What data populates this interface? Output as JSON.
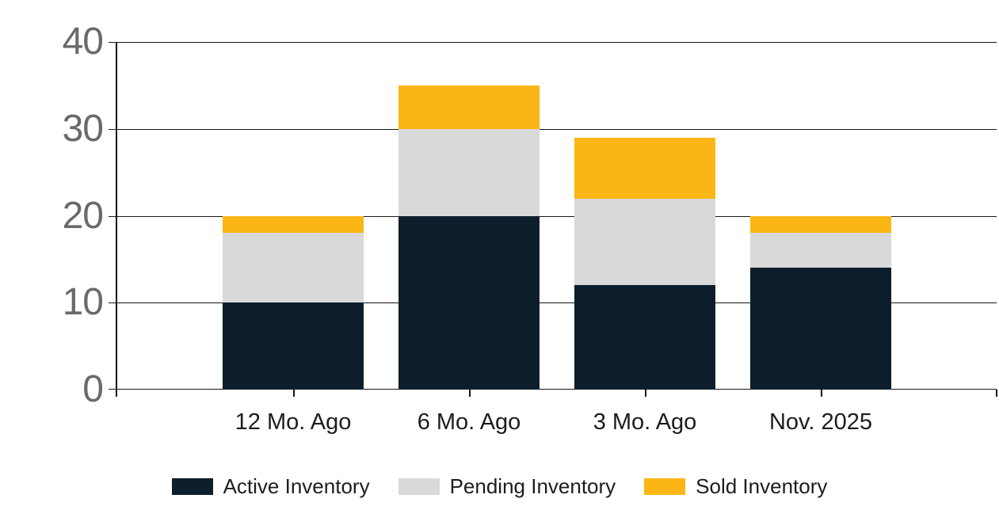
{
  "chart_data": {
    "type": "bar",
    "stacked": true,
    "title": "",
    "categories": [
      "12 Mo. Ago",
      "6 Mo. Ago",
      "3 Mo. Ago",
      "Nov. 2025"
    ],
    "series": [
      {
        "name": "Active Inventory",
        "color": "#0c1e2b",
        "values": [
          10,
          20,
          12,
          14
        ]
      },
      {
        "name": "Pending Inventory",
        "color": "#d9d9d9",
        "values": [
          8,
          10,
          10,
          4
        ]
      },
      {
        "name": "Sold Inventory",
        "color": "#fbb615",
        "values": [
          2,
          5,
          7,
          2
        ]
      }
    ],
    "stack_totals": [
      20,
      35,
      29,
      20
    ],
    "y_axis": {
      "min": 0,
      "max": 40,
      "ticks": [
        0,
        10,
        20,
        30,
        40
      ],
      "tick_labels": [
        "0",
        "10",
        "20",
        "30",
        "40"
      ]
    },
    "x_axis": {
      "tick_labels": [
        "12 Mo. Ago",
        "6 Mo. Ago",
        "3 Mo. Ago",
        "Nov. 2025"
      ]
    },
    "grid": "horizontal",
    "legend_position": "bottom",
    "theme": {
      "background": "#ffffff",
      "grid_color": "#161616",
      "y_label_color": "#696a6c",
      "text_color": "#1d1d1f"
    }
  }
}
